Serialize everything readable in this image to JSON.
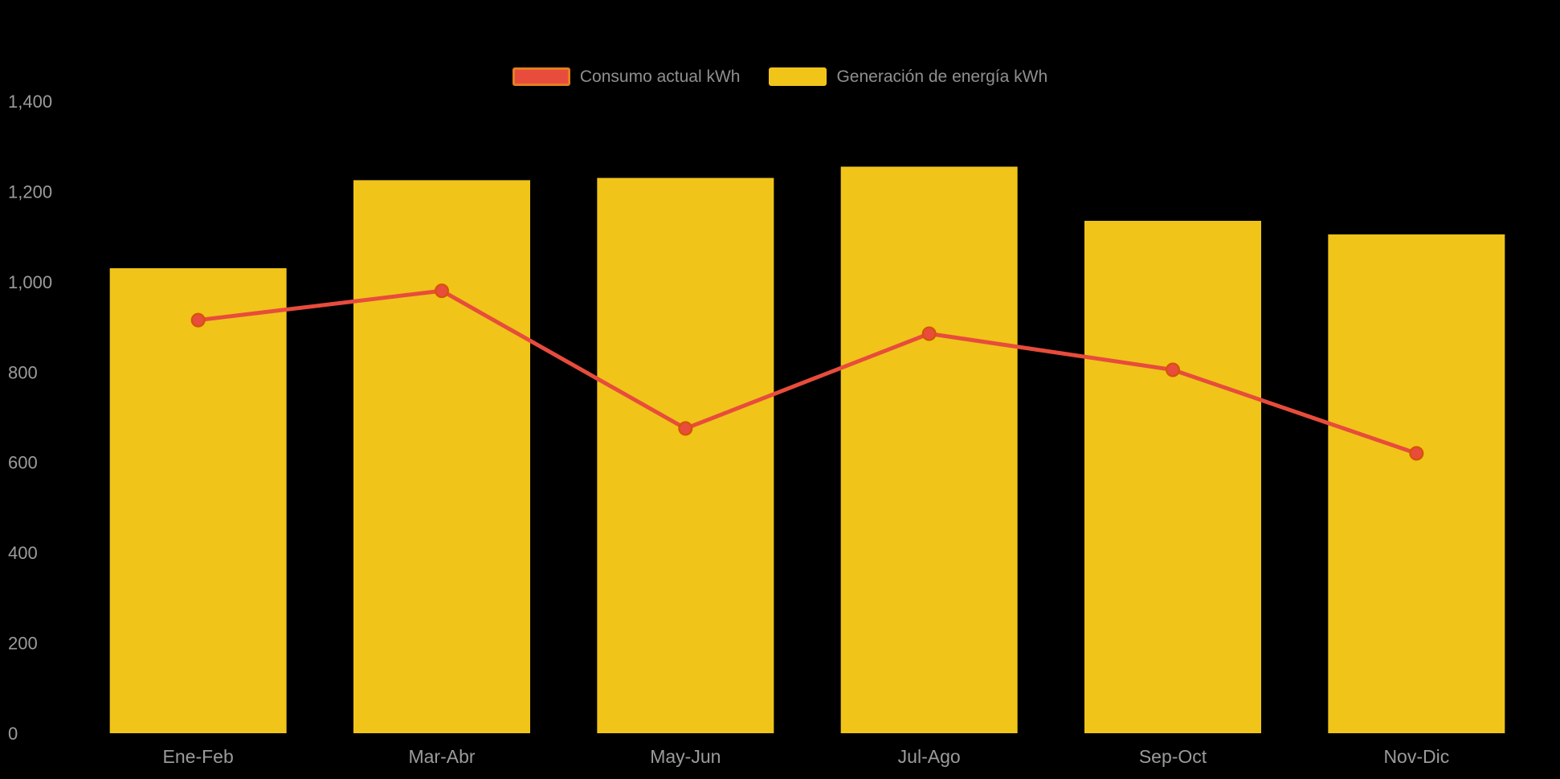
{
  "chart_data": {
    "type": "bar",
    "subtype": "bar-with-line-overlay",
    "title": "",
    "xlabel": "",
    "ylabel": "",
    "categories": [
      "Ene-Feb",
      "Mar-Abr",
      "May-Jun",
      "Jul-Ago",
      "Sep-Oct",
      "Nov-Dic"
    ],
    "series": [
      {
        "name": "Consumo actual kWh",
        "type": "line",
        "values": [
          915,
          980,
          675,
          885,
          805,
          620
        ],
        "color": "#E74C3C",
        "marker_stroke": "#D35400",
        "legend_border": "#E67E22"
      },
      {
        "name": "Generación de energía kWh",
        "type": "bar",
        "values": [
          1030,
          1225,
          1230,
          1255,
          1135,
          1105
        ],
        "color": "#F0C419",
        "legend_border": "#F0C419"
      }
    ],
    "ylim": [
      0,
      1400
    ],
    "ytick_values": [
      0,
      200,
      400,
      600,
      800,
      1000,
      1200,
      1400
    ],
    "ytick_labels": [
      "0",
      "200",
      "400",
      "600",
      "800",
      "1,000",
      "1,200",
      "1,400"
    ],
    "grid": false,
    "legend_position": "top-center",
    "background_color": "#000000",
    "axis_text_color": "#9b9b9b",
    "legend_text_color": "#8f8f8f"
  }
}
